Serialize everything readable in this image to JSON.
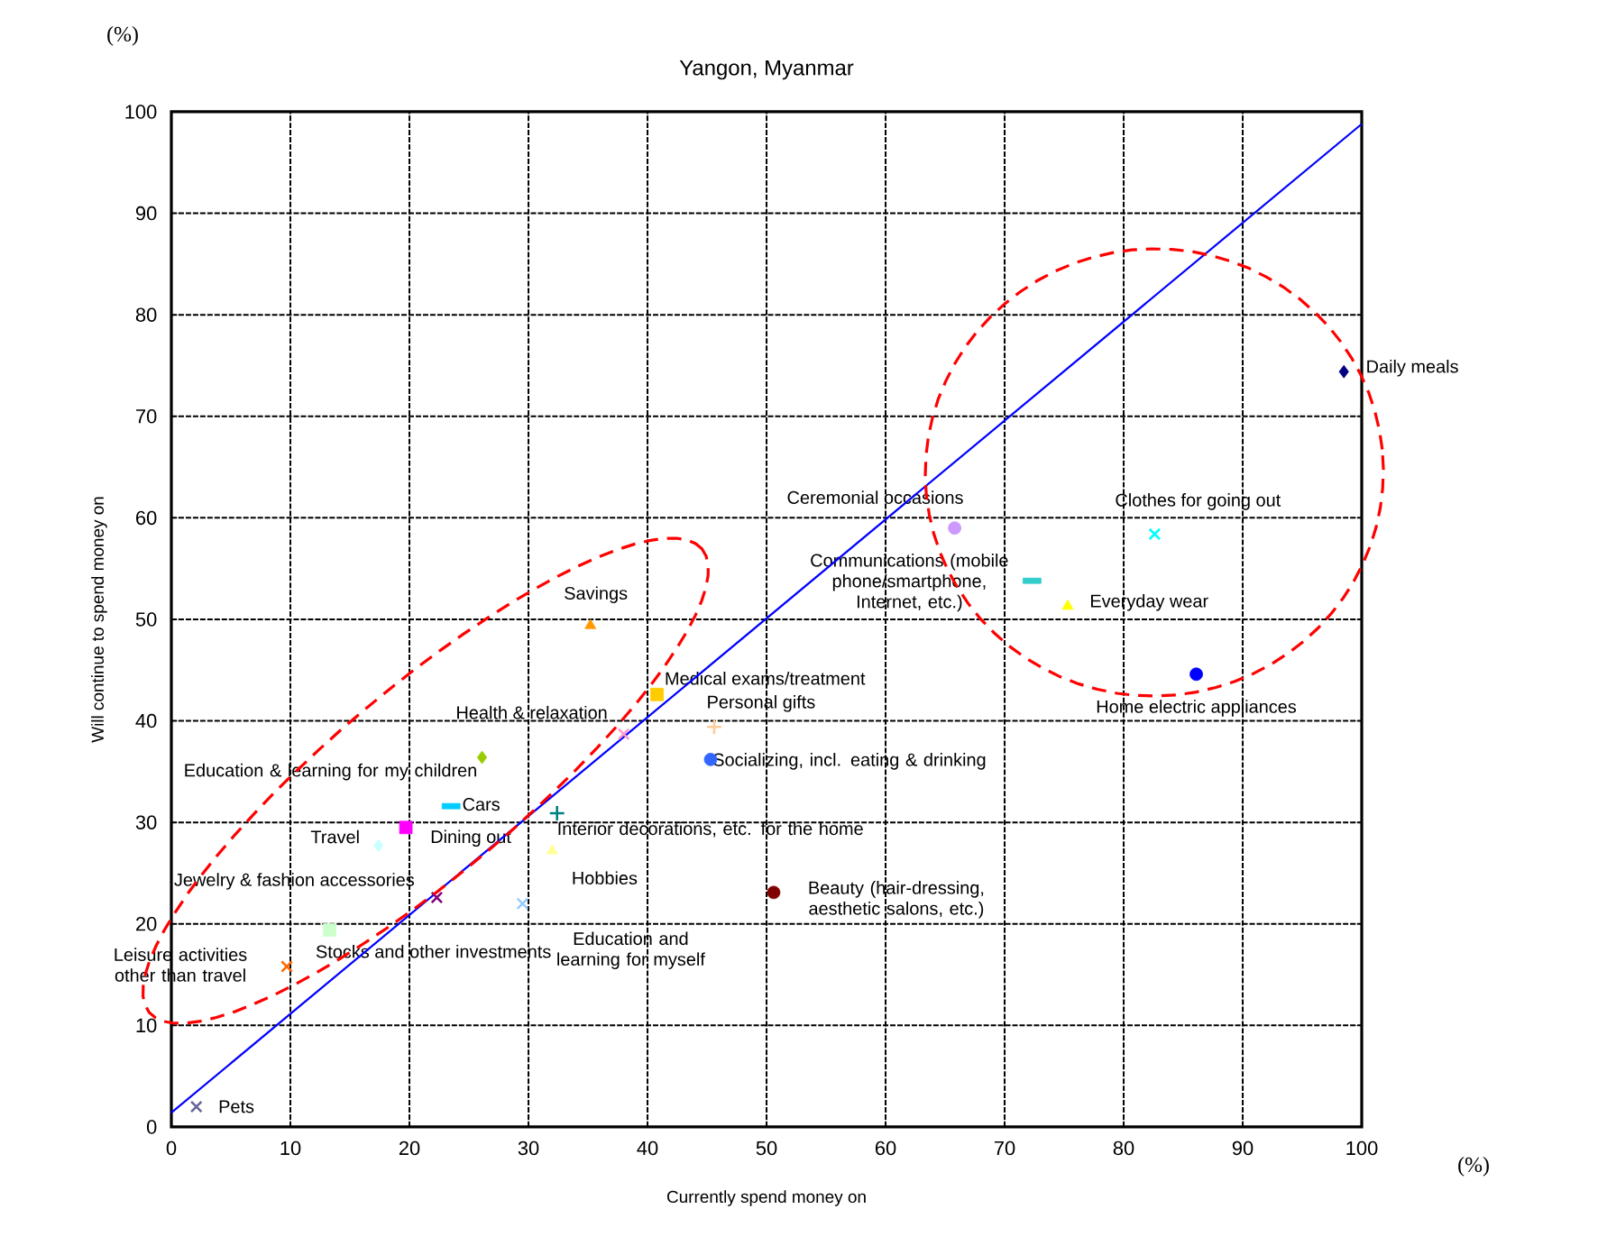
{
  "chart_data": {
    "type": "scatter",
    "title": "Yangon, Myanmar",
    "xlabel": "Currently spend money on",
    "ylabel": "Will continue to spend money on",
    "xlim": [
      0,
      100
    ],
    "ylim": [
      0,
      100
    ],
    "xticks": [
      0,
      10,
      20,
      30,
      40,
      50,
      60,
      70,
      80,
      90,
      100
    ],
    "yticks": [
      0,
      10,
      20,
      30,
      40,
      50,
      60,
      70,
      80,
      90,
      100
    ],
    "grid": true,
    "annotations": [
      "(%)",
      "(%)"
    ],
    "series": [
      {
        "name": "Daily meals",
        "color": "#000080",
        "marker": "diamond",
        "x": [
          98.5
        ],
        "values": [
          74.4
        ]
      },
      {
        "name": "Ceremonial occasions",
        "color": "#cc99ff",
        "marker": "circle",
        "x": [
          65.8
        ],
        "values": [
          59.0
        ]
      },
      {
        "name": "Clothes for going out",
        "color": "#00ffff",
        "marker": "cross",
        "x": [
          82.6
        ],
        "values": [
          58.4
        ]
      },
      {
        "name": "Communications (mobile phone/smartphone, Internet, etc.)",
        "color": "#33cccc",
        "marker": "square",
        "x": [
          72.3
        ],
        "values": [
          53.8
        ]
      },
      {
        "name": "Everyday wear",
        "color": "#ffff00",
        "marker": "triangle",
        "x": [
          75.3
        ],
        "values": [
          51.3
        ]
      },
      {
        "name": "Home electric appliances",
        "color": "#0000ff",
        "marker": "circle",
        "x": [
          86.1
        ],
        "values": [
          44.6
        ]
      },
      {
        "name": "Savings",
        "color": "#ff9900",
        "marker": "triangle",
        "x": [
          35.2
        ],
        "values": [
          49.4
        ]
      },
      {
        "name": "Medical exams/treatment",
        "color": "#ffcc00",
        "marker": "square",
        "x": [
          40.8
        ],
        "values": [
          42.6
        ]
      },
      {
        "name": "Personal gifts",
        "color": "#ffcc99",
        "marker": "plus",
        "x": [
          45.6
        ],
        "values": [
          39.4
        ]
      },
      {
        "name": "Health & relaxation",
        "color": "#ff99cc",
        "marker": "cross",
        "x": [
          38.0
        ],
        "values": [
          38.7
        ]
      },
      {
        "name": "Socializing, incl. eating & drinking",
        "color": "#3366ff",
        "marker": "circle",
        "x": [
          45.3
        ],
        "values": [
          36.2
        ]
      },
      {
        "name": "Education & learning for my children",
        "color": "#99cc00",
        "marker": "diamond",
        "x": [
          26.1
        ],
        "values": [
          36.4
        ]
      },
      {
        "name": "Cars",
        "color": "#00ccff",
        "marker": "square",
        "x": [
          23.5
        ],
        "values": [
          31.6
        ]
      },
      {
        "name": "Interior decorations, etc. for the home",
        "color": "#008080",
        "marker": "plus",
        "x": [
          32.4
        ],
        "values": [
          30.9
        ]
      },
      {
        "name": "Dining out",
        "color": "#ff00ff",
        "marker": "square",
        "x": [
          19.7
        ],
        "values": [
          29.5
        ]
      },
      {
        "name": "Travel",
        "color": "#ccffff",
        "marker": "diamond",
        "x": [
          17.4
        ],
        "values": [
          27.7
        ]
      },
      {
        "name": "Hobbies",
        "color": "#ffff99",
        "marker": "triangle",
        "x": [
          32.0
        ],
        "values": [
          27.2
        ]
      },
      {
        "name": "Jewelry & fashion accessories",
        "color": "#800080",
        "marker": "cross",
        "x": [
          22.3
        ],
        "values": [
          22.6
        ]
      },
      {
        "name": "Education and learning for myself",
        "color": "#99ccff",
        "marker": "cross",
        "x": [
          29.5
        ],
        "values": [
          22.0
        ]
      },
      {
        "name": "Beauty (hair-dressing, aesthetic salons, etc.)",
        "color": "#800000",
        "marker": "circle",
        "x": [
          50.6
        ],
        "values": [
          23.1
        ]
      },
      {
        "name": "Stocks and other investments",
        "color": "#ccffcc",
        "marker": "square",
        "x": [
          13.3
        ],
        "values": [
          19.4
        ]
      },
      {
        "name": "Leisure activities other than travel",
        "color": "#ff6600",
        "marker": "cross",
        "x": [
          9.7
        ],
        "values": [
          15.8
        ]
      },
      {
        "name": "Pets",
        "color": "#666699",
        "marker": "cross",
        "x": [
          2.1
        ],
        "values": [
          2.0
        ]
      },
      {
        "type": "line",
        "color": "#0000ff",
        "x": [
          0,
          100
        ],
        "values": [
          1.4,
          98.8
        ]
      }
    ]
  }
}
